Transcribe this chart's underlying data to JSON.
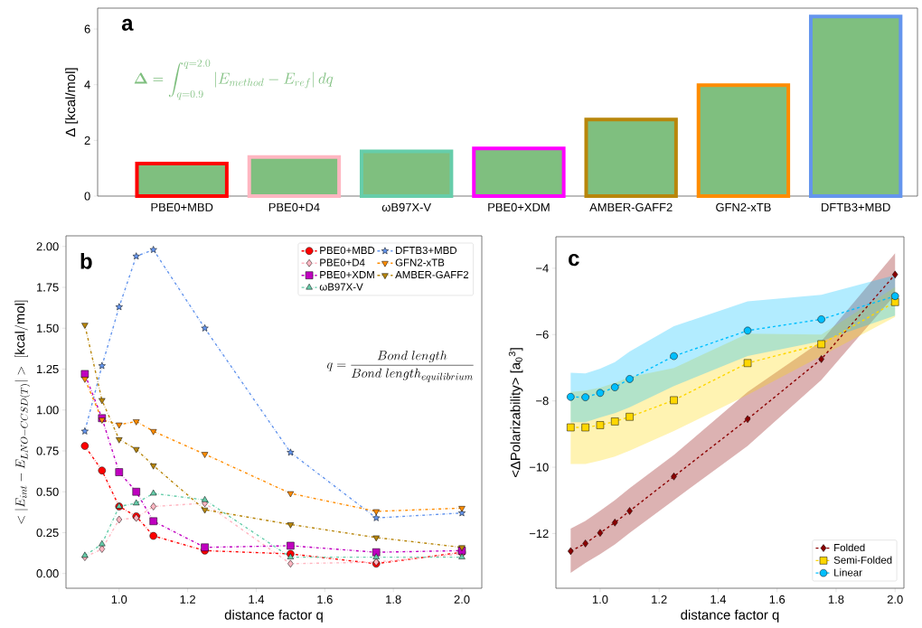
{
  "chart_data": [
    {
      "type": "bar",
      "title": "a",
      "ylabel": "Δ [kcal/mol]",
      "categories": [
        "PBE0+MBD",
        "PBE0+D4",
        "ωB97X-V",
        "PBE0+XDM",
        "AMBER-GAFF2",
        "GFN2-xTB",
        "DFTB3+MBD"
      ],
      "values": [
        1.17,
        1.4,
        1.61,
        1.71,
        2.75,
        3.98,
        6.45
      ],
      "color": "#7fbf7f",
      "colors": [
        "#ff0000",
        "#ffb6c1",
        "#66cdaa",
        "#ff00ff",
        "#b8860b",
        "#ff8c00",
        "#6495ed"
      ],
      "ylim": [
        0,
        6.75
      ],
      "yticks": [
        0,
        2,
        4,
        6
      ],
      "annotations": [
        "\\boldsymbol{\\Delta} = \\int_{q=0.9}^{q=2.0} |E_{method} - E_{ref}|\\,dq"
      ]
    },
    {
      "type": "line",
      "title": "b",
      "xlabel": "distance factor q",
      "ylabel": "<|E_{int} - E_{LNO - CCSD(T)}|>\\ \\mathrm{[kcal/mol]}",
      "x": [
        0.9,
        0.95,
        1.0,
        1.05,
        1.1,
        1.25,
        1.5,
        1.75,
        2.0
      ],
      "series": [
        {
          "name": "PBE0+MBD",
          "color": "#ff0000",
          "marker": "circle",
          "values": [
            0.78,
            0.63,
            0.41,
            0.35,
            0.23,
            0.14,
            0.12,
            0.06,
            0.13
          ]
        },
        {
          "name": "PBE0+D4",
          "color": "#ffb6c1",
          "marker": "diamond",
          "values": [
            0.1,
            0.15,
            0.33,
            0.34,
            0.41,
            0.43,
            0.06,
            0.07,
            0.12
          ]
        },
        {
          "name": "PBE0+XDM",
          "color": "#c000c0",
          "marker": "square",
          "values": [
            1.22,
            0.95,
            0.62,
            0.5,
            0.32,
            0.16,
            0.17,
            0.13,
            0.14
          ]
        },
        {
          "name": "ωB97X-V",
          "color": "#66cdaa",
          "marker": "triangle",
          "values": [
            0.11,
            0.18,
            0.41,
            0.43,
            0.49,
            0.45,
            0.1,
            0.1,
            0.1
          ]
        },
        {
          "name": "DFTB3+MBD",
          "color": "#6495ed",
          "marker": "star",
          "values": [
            0.87,
            1.27,
            1.63,
            1.94,
            1.98,
            1.5,
            0.74,
            0.34,
            0.37
          ]
        },
        {
          "name": "GFN2-xTB",
          "color": "#ff8c00",
          "marker": "triangle_down",
          "values": [
            1.19,
            0.94,
            0.91,
            0.93,
            0.87,
            0.73,
            0.49,
            0.38,
            0.4
          ]
        },
        {
          "name": "AMBER-GAFF2",
          "color": "#b8860b",
          "marker": "triangle_down",
          "values": [
            1.52,
            1.06,
            0.82,
            0.76,
            0.66,
            0.39,
            0.3,
            0.22,
            0.16
          ]
        }
      ],
      "xlim": [
        0.845,
        2.058
      ],
      "ylim": [
        -0.09,
        2.065
      ],
      "xticks": [
        {
          "value": 1.0,
          "label": "1.0"
        },
        {
          "value": 1.2,
          "label": "1.2"
        },
        {
          "value": 1.4,
          "label": "1.4"
        },
        {
          "value": 1.6,
          "label": "1.6"
        },
        {
          "value": 1.8,
          "label": "1.8"
        },
        {
          "value": 2.0,
          "label": "2.0"
        }
      ],
      "yticks": [
        {
          "value": 0,
          "label": "0.00"
        },
        {
          "value": 0.25,
          "label": "0.25"
        },
        {
          "value": 0.5,
          "label": "0.50"
        },
        {
          "value": 0.75,
          "label": "0.75"
        },
        {
          "value": 1.0,
          "label": "1.00"
        },
        {
          "value": 1.25,
          "label": "1.25"
        },
        {
          "value": 1.5,
          "label": "1.50"
        },
        {
          "value": 1.75,
          "label": "1.75"
        },
        {
          "value": 2.0,
          "label": "2.00"
        }
      ],
      "legend": "top right",
      "line_style": "dashdot",
      "annotations": [
        "q = \\frac{Bond\\ length}{Bond\\ length_{equilibrium}}"
      ]
    },
    {
      "type": "line",
      "title": "c",
      "xlabel": "distance factor q",
      "ylabel": "<ΔPolarizability> [a$_{0}$$^{3}$]",
      "x": [
        0.9,
        0.95,
        1.0,
        1.05,
        1.1,
        1.25,
        1.5,
        1.75,
        2.0
      ],
      "series": [
        {
          "name": "Folded",
          "color": "#8b0000",
          "marker": "diamond",
          "values": [
            -12.53,
            -12.3,
            -11.98,
            -11.67,
            -11.32,
            -10.28,
            -8.55,
            -6.74,
            -4.19
          ],
          "lower": [
            -13.19,
            -12.89,
            -12.62,
            -12.33,
            -11.98,
            -10.99,
            -9.36,
            -7.37,
            -4.8
          ],
          "upper": [
            -11.85,
            -11.62,
            -11.31,
            -10.99,
            -10.63,
            -9.63,
            -7.73,
            -6.2,
            -3.55
          ]
        },
        {
          "name": "Semi-Folded",
          "color": "#ffd700",
          "marker": "square",
          "values": [
            -8.8,
            -8.8,
            -8.73,
            -8.62,
            -8.48,
            -7.98,
            -6.86,
            -6.29,
            -5.02
          ],
          "lower": [
            -9.9,
            -9.9,
            -9.8,
            -9.68,
            -9.5,
            -8.91,
            -7.82,
            -6.65,
            -5.47
          ],
          "upper": [
            -7.73,
            -7.69,
            -7.6,
            -7.46,
            -7.28,
            -7.01,
            -5.97,
            -6.0,
            -4.57
          ]
        },
        {
          "name": "Linear",
          "color": "#00bfff",
          "marker": "circle",
          "values": [
            -7.88,
            -7.89,
            -7.76,
            -7.59,
            -7.34,
            -6.65,
            -5.88,
            -5.54,
            -4.84
          ],
          "lower": [
            -8.64,
            -8.64,
            -8.5,
            -8.37,
            -8.19,
            -7.55,
            -6.65,
            -6.2,
            -5.43
          ],
          "upper": [
            -7.15,
            -7.17,
            -7.03,
            -6.83,
            -6.51,
            -5.75,
            -5.0,
            -4.8,
            -4.21
          ]
        }
      ],
      "xlim": [
        0.85,
        2.03
      ],
      "ylim": [
        -13.65,
        -3.05
      ],
      "xticks": [
        {
          "value": 1.0,
          "label": "1.0"
        },
        {
          "value": 1.2,
          "label": "1.2"
        },
        {
          "value": 1.4,
          "label": "1.4"
        },
        {
          "value": 1.6,
          "label": "1.6"
        },
        {
          "value": 1.8,
          "label": "1.8"
        },
        {
          "value": 2.0,
          "label": "2.0"
        }
      ],
      "yticks": [
        {
          "value": -12,
          "label": "−12"
        },
        {
          "value": -10,
          "label": "−10"
        },
        {
          "value": -8,
          "label": "−8"
        },
        {
          "value": -6,
          "label": "−6"
        },
        {
          "value": -4,
          "label": "−4"
        }
      ],
      "legend": "bottom right",
      "line_style": "dashed"
    }
  ]
}
